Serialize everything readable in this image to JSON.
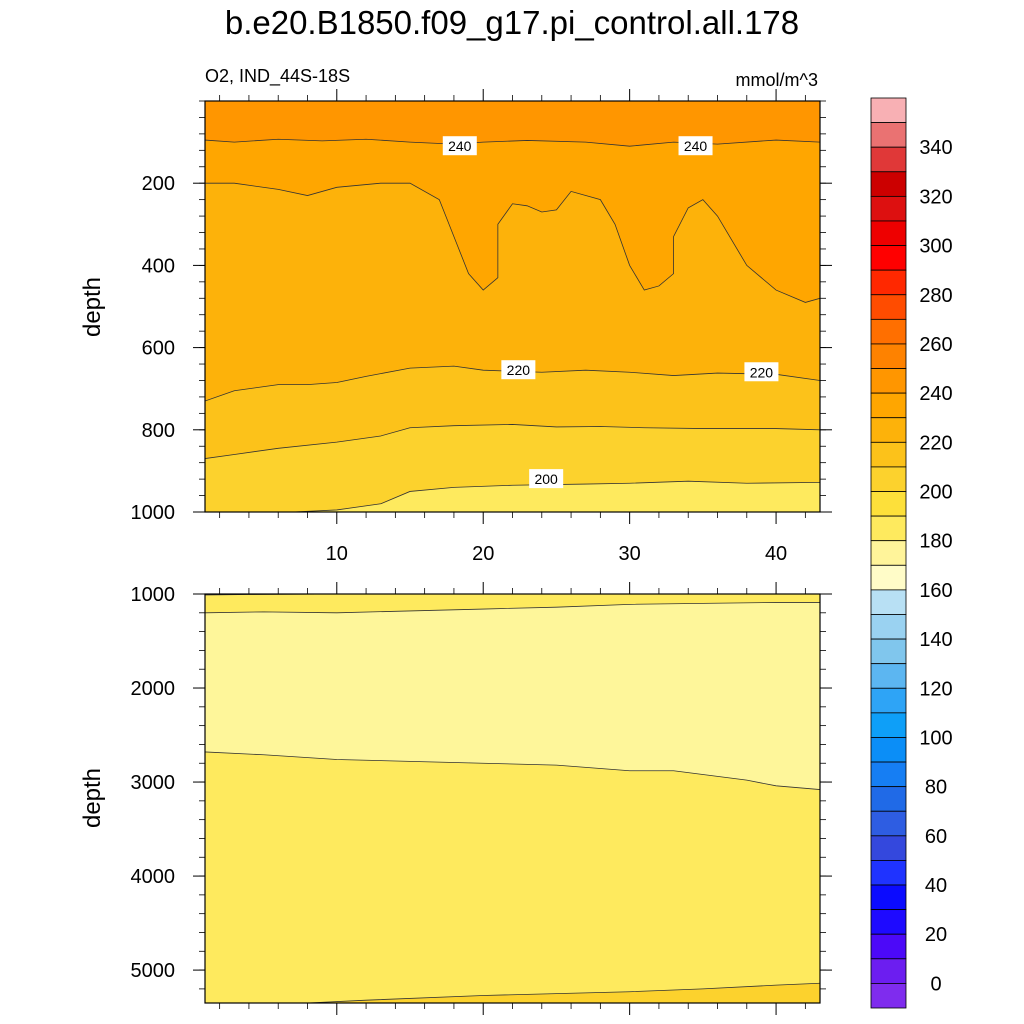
{
  "title": "b.e20.B1850.f09_g17.pi_control.all.178",
  "chart_data": {
    "type": "contour",
    "variable": "O2",
    "region": "IND_44S-18S",
    "subtitle_left": "O2, IND_44S-18S",
    "units": "mmol/m^3",
    "xlabel": "",
    "ylabel": "depth",
    "x_range": [
      1,
      43
    ],
    "x_ticks": [
      10,
      20,
      30,
      40
    ],
    "top_panel": {
      "ylim": [
        0,
        1000
      ],
      "y_ticks": [
        200,
        400,
        600,
        800,
        1000
      ],
      "contour_labels": [
        {
          "text": "240",
          "x": 18.4,
          "y": 110
        },
        {
          "text": "240",
          "x": 34.5,
          "y": 110
        },
        {
          "text": "220",
          "x": 22.4,
          "y": 655
        },
        {
          "text": "220",
          "x": 39.0,
          "y": 660
        },
        {
          "text": "200",
          "x": 24.3,
          "y": 920
        }
      ],
      "contours": [
        {
          "level": 240,
          "points": [
            [
              1,
              95
            ],
            [
              3,
              100
            ],
            [
              6,
              93
            ],
            [
              9,
              97
            ],
            [
              12,
              93
            ],
            [
              15,
              100
            ],
            [
              18,
              105
            ],
            [
              20,
              100
            ],
            [
              23,
              96
            ],
            [
              27,
              100
            ],
            [
              30,
              110
            ],
            [
              33,
              100
            ],
            [
              36,
              105
            ],
            [
              40,
              95
            ],
            [
              43,
              100
            ]
          ]
        },
        {
          "level": 230,
          "points": [
            [
              1,
              200
            ],
            [
              3,
              200
            ],
            [
              6,
              215
            ],
            [
              8,
              230
            ],
            [
              10,
              210
            ],
            [
              13,
              200
            ],
            [
              15,
              200
            ],
            [
              17,
              240
            ],
            [
              18,
              330
            ],
            [
              19,
              420
            ],
            [
              20,
              460
            ],
            [
              21,
              430
            ],
            [
              21,
              300
            ],
            [
              22,
              250
            ],
            [
              23,
              255
            ],
            [
              24,
              270
            ],
            [
              25,
              265
            ],
            [
              26,
              220
            ],
            [
              28,
              240
            ],
            [
              29,
              300
            ],
            [
              30,
              400
            ],
            [
              31,
              460
            ],
            [
              32,
              450
            ],
            [
              33,
              420
            ],
            [
              33,
              330
            ],
            [
              34,
              260
            ],
            [
              35,
              240
            ],
            [
              36,
              280
            ],
            [
              38,
              400
            ],
            [
              40,
              460
            ],
            [
              42,
              490
            ],
            [
              43,
              480
            ]
          ]
        },
        {
          "level": 220,
          "points": [
            [
              1,
              730
            ],
            [
              3,
              705
            ],
            [
              6,
              690
            ],
            [
              8,
              690
            ],
            [
              10,
              685
            ],
            [
              12,
              670
            ],
            [
              15,
              650
            ],
            [
              18,
              645
            ],
            [
              20,
              655
            ],
            [
              24,
              660
            ],
            [
              27,
              655
            ],
            [
              30,
              660
            ],
            [
              33,
              668
            ],
            [
              36,
              662
            ],
            [
              40,
              665
            ],
            [
              43,
              680
            ]
          ]
        },
        {
          "level": 210,
          "points": [
            [
              1,
              870
            ],
            [
              3,
              860
            ],
            [
              6,
              845
            ],
            [
              10,
              830
            ],
            [
              13,
              815
            ],
            [
              15,
              795
            ],
            [
              18,
              790
            ],
            [
              22,
              787
            ],
            [
              25,
              793
            ],
            [
              28,
              792
            ],
            [
              31,
              795
            ],
            [
              35,
              797
            ],
            [
              40,
              797
            ],
            [
              43,
              800
            ]
          ]
        },
        {
          "level": 200,
          "points": [
            [
              7,
              1000
            ],
            [
              10,
              995
            ],
            [
              13,
              980
            ],
            [
              15,
              950
            ],
            [
              18,
              940
            ],
            [
              22,
              935
            ],
            [
              27,
              932
            ],
            [
              30,
              930
            ],
            [
              34,
              925
            ],
            [
              38,
              930
            ],
            [
              43,
              928
            ]
          ]
        }
      ]
    },
    "bottom_panel": {
      "ylim": [
        1000,
        5350
      ],
      "y_ticks": [
        1000,
        2000,
        3000,
        4000,
        5000
      ],
      "contours": [
        {
          "level": 190,
          "points": [
            [
              1,
              1010
            ],
            [
              4,
              1005
            ],
            [
              10,
              1000
            ]
          ]
        },
        {
          "level": 180,
          "points": [
            [
              1,
              1200
            ],
            [
              5,
              1190
            ],
            [
              10,
              1200
            ],
            [
              15,
              1180
            ],
            [
              20,
              1160
            ],
            [
              25,
              1140
            ],
            [
              30,
              1110
            ],
            [
              35,
              1100
            ],
            [
              40,
              1090
            ],
            [
              43,
              1090
            ]
          ]
        },
        {
          "level": 190,
          "points": [
            [
              1,
              2680
            ],
            [
              5,
              2710
            ],
            [
              10,
              2760
            ],
            [
              15,
              2780
            ],
            [
              20,
              2800
            ],
            [
              25,
              2820
            ],
            [
              30,
              2880
            ],
            [
              33,
              2880
            ],
            [
              35,
              2920
            ],
            [
              38,
              2980
            ],
            [
              40,
              3040
            ],
            [
              43,
              3080
            ]
          ]
        },
        {
          "level": 200,
          "points": [
            [
              8,
              5350
            ],
            [
              12,
              5320
            ],
            [
              20,
              5270
            ],
            [
              25,
              5250
            ],
            [
              30,
              5230
            ],
            [
              35,
              5200
            ],
            [
              40,
              5160
            ],
            [
              43,
              5140
            ]
          ]
        }
      ]
    },
    "colorbar": {
      "labels": [
        "340",
        "320",
        "300",
        "280",
        "260",
        "240",
        "220",
        "200",
        "180",
        "160",
        "140",
        "120",
        "100",
        "80",
        "60",
        "40",
        "20",
        "0"
      ],
      "colors": [
        "#f8b0b4",
        "#ea7272",
        "#e03838",
        "#cc0000",
        "#dd1010",
        "#ee0000",
        "#ff0000",
        "#ff2800",
        "#ff4c00",
        "#ff6f00",
        "#fe8200",
        "#ff9600",
        "#ffa600",
        "#fdb20a",
        "#fcc21a",
        "#fcd22d",
        "#fde03a",
        "#feea5e",
        "#fff49a",
        "#fffcc8",
        "#b8e0f4",
        "#9ad2f1",
        "#80c6ed",
        "#5cb6f1",
        "#2ea4f6",
        "#0e9ff8",
        "#0b8ef7",
        "#167ef3",
        "#206ae7",
        "#2e5de2",
        "#3448dd",
        "#1f33ff",
        "#0b0bff",
        "#1e0aff",
        "#4c09f8",
        "#6c1ef0",
        "#7f2cee"
      ]
    },
    "fill_colors": {
      "240+": "#ff9600",
      "230-240": "#ffa600",
      "220-230": "#fdb20a",
      "210-220": "#fcc21a",
      "200-210": "#fcd22d",
      "190-200": "#feea5e",
      "180-190": "#fef69a"
    }
  }
}
